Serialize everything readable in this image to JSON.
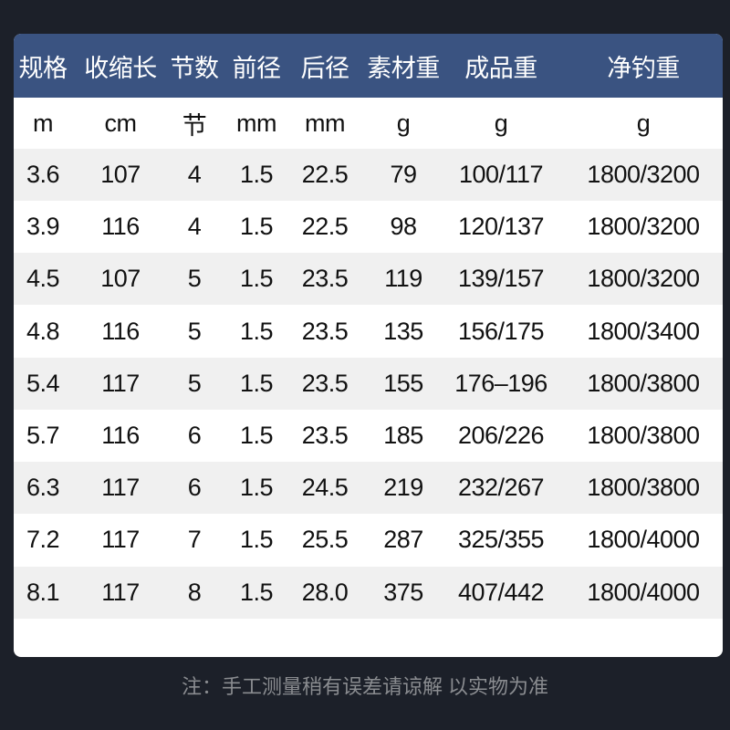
{
  "table": {
    "headers": [
      "规格",
      "收缩长",
      "节数",
      "前径",
      "后径",
      "素材重",
      "成品重",
      "净钓重"
    ],
    "units": [
      "m",
      "cm",
      "节",
      "mm",
      "mm",
      "g",
      "g",
      "g"
    ],
    "rows": [
      [
        "3.6",
        "107",
        "4",
        "1.5",
        "22.5",
        "79",
        "100/117",
        "1800/3200"
      ],
      [
        "3.9",
        "116",
        "4",
        "1.5",
        "22.5",
        "98",
        "120/137",
        "1800/3200"
      ],
      [
        "4.5",
        "107",
        "5",
        "1.5",
        "23.5",
        "119",
        "139/157",
        "1800/3200"
      ],
      [
        "4.8",
        "116",
        "5",
        "1.5",
        "23.5",
        "135",
        "156/175",
        "1800/3400"
      ],
      [
        "5.4",
        "117",
        "5",
        "1.5",
        "23.5",
        "155",
        "176–196",
        "1800/3800"
      ],
      [
        "5.7",
        "116",
        "6",
        "1.5",
        "23.5",
        "185",
        "206/226",
        "1800/3800"
      ],
      [
        "6.3",
        "117",
        "6",
        "1.5",
        "24.5",
        "219",
        "232/267",
        "1800/3800"
      ],
      [
        "7.2",
        "117",
        "7",
        "1.5",
        "25.5",
        "287",
        "325/355",
        "1800/4000"
      ],
      [
        "8.1",
        "117",
        "8",
        "1.5",
        "28.0",
        "375",
        "407/442",
        "1800/4000"
      ]
    ]
  },
  "note": "注：手工测量稍有误差请谅解 以实物为准",
  "colors": {
    "background": "#1c2029",
    "header": "#3a5381",
    "stripe": "#f0f0f0"
  }
}
